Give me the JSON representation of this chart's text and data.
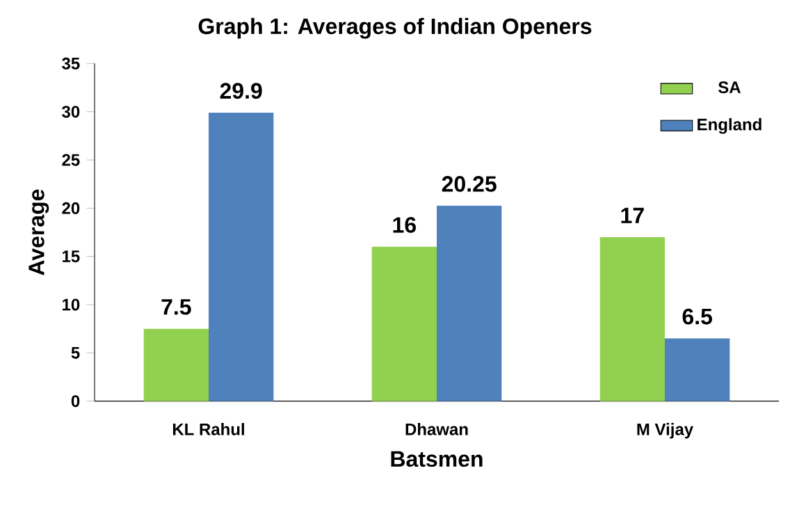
{
  "chart_data": {
    "type": "bar",
    "title": "Graph 1: Averages of Indian Openers",
    "xlabel": "Batsmen",
    "ylabel": "Average",
    "categories": [
      "KL Rahul",
      "Dhawan",
      "M Vijay"
    ],
    "series": [
      {
        "name": "SA",
        "color": "#92d050",
        "values": [
          7.5,
          16,
          17
        ]
      },
      {
        "name": "England",
        "color": "#4f81bd",
        "values": [
          29.9,
          20.25,
          6.5
        ]
      }
    ],
    "ylim": [
      0,
      35
    ],
    "yticks": [
      0,
      5,
      10,
      15,
      20,
      25,
      30,
      35
    ],
    "legend": "top right",
    "data_labels": true
  }
}
